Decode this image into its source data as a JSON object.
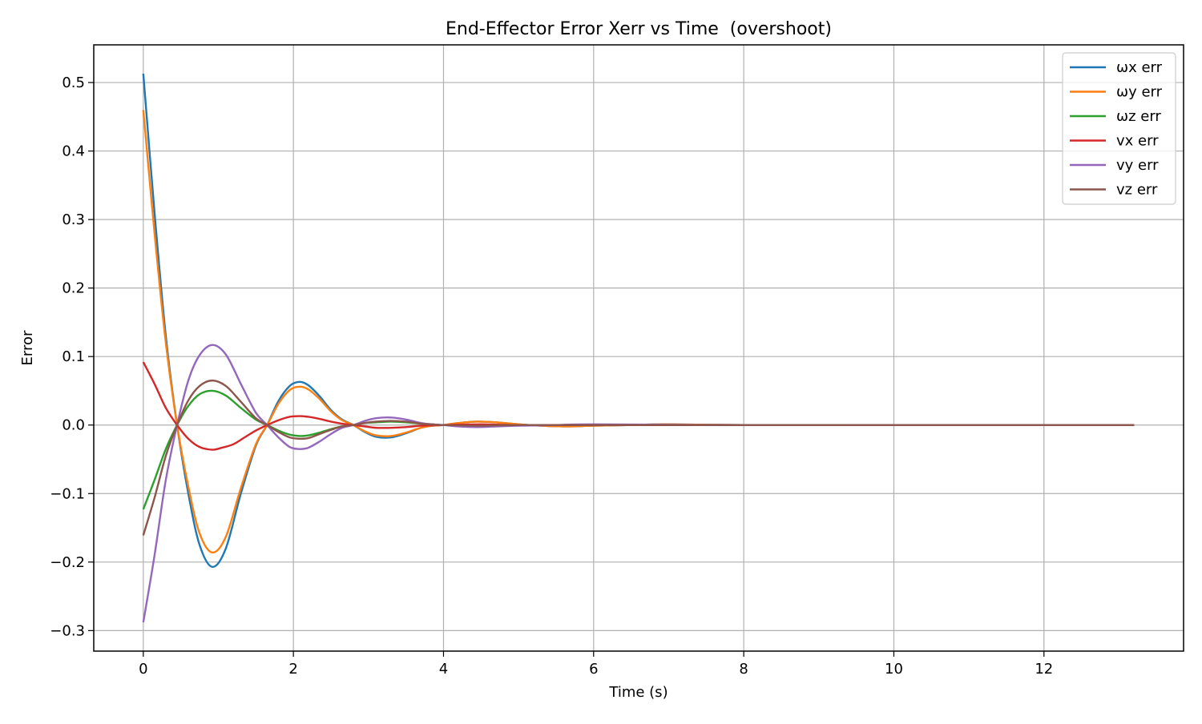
{
  "chart_data": {
    "type": "line",
    "title": "End-Effector Error Xerr vs Time  (overshoot)",
    "xlabel": "Time (s)",
    "ylabel": "Error",
    "xlim": [
      -0.66,
      13.86
    ],
    "ylim": [
      -0.33,
      0.555
    ],
    "xticks": [
      0,
      2,
      4,
      6,
      8,
      10,
      12
    ],
    "xtick_labels": [
      "0",
      "2",
      "4",
      "6",
      "8",
      "10",
      "12"
    ],
    "yticks": [
      -0.3,
      -0.2,
      -0.1,
      0.0,
      0.1,
      0.2,
      0.3,
      0.4,
      0.5
    ],
    "ytick_labels": [
      "−0.3",
      "−0.2",
      "−0.1",
      "0.0",
      "0.1",
      "0.2",
      "0.3",
      "0.4",
      "0.5"
    ],
    "grid": true,
    "legend_position": "top-right",
    "series": [
      {
        "name": "ωx err",
        "color": "#1f77b4",
        "x": [
          0,
          0.15,
          0.3,
          0.45,
          0.6,
          0.75,
          0.92,
          1.1,
          1.3,
          1.5,
          1.65,
          1.8,
          1.95,
          2.08,
          2.2,
          2.35,
          2.5,
          2.65,
          2.8,
          2.95,
          3.1,
          3.3,
          3.5,
          3.7,
          3.85,
          4.0,
          4.2,
          4.45,
          4.7,
          5.0,
          5.3,
          5.6,
          6.0,
          6.5,
          7.0,
          8.0,
          9.0,
          10.0,
          11.0,
          12.0,
          13.2
        ],
        "y": [
          0.513,
          0.31,
          0.13,
          0.0,
          -0.1,
          -0.175,
          -0.207,
          -0.18,
          -0.1,
          -0.03,
          0.0,
          0.035,
          0.057,
          0.063,
          0.058,
          0.042,
          0.022,
          0.008,
          0.0,
          -0.01,
          -0.017,
          -0.018,
          -0.012,
          -0.004,
          -0.001,
          0.0,
          0.003,
          0.005,
          0.004,
          0.001,
          -0.001,
          -0.002,
          -0.001,
          0.0,
          0.001,
          0.0,
          0.0,
          0.0,
          0.0,
          0.0,
          0.0
        ]
      },
      {
        "name": "ωy err",
        "color": "#ff7f0e",
        "x": [
          0,
          0.15,
          0.3,
          0.45,
          0.6,
          0.75,
          0.92,
          1.1,
          1.3,
          1.5,
          1.65,
          1.8,
          1.95,
          2.08,
          2.2,
          2.35,
          2.5,
          2.65,
          2.8,
          2.95,
          3.1,
          3.3,
          3.5,
          3.7,
          3.85,
          4.0,
          4.2,
          4.45,
          4.7,
          5.0,
          5.3,
          5.6,
          6.0,
          6.5,
          7.0,
          8.0,
          9.0,
          10.0,
          11.0,
          12.0,
          13.2
        ],
        "y": [
          0.46,
          0.28,
          0.12,
          0.0,
          -0.09,
          -0.158,
          -0.186,
          -0.163,
          -0.092,
          -0.028,
          0.0,
          0.031,
          0.051,
          0.056,
          0.052,
          0.038,
          0.02,
          0.007,
          0.0,
          -0.009,
          -0.015,
          -0.016,
          -0.011,
          -0.004,
          -0.001,
          0.0,
          0.003,
          0.005,
          0.004,
          0.001,
          -0.001,
          -0.002,
          -0.001,
          0.0,
          0.001,
          0.0,
          0.0,
          0.0,
          0.0,
          0.0,
          0.0
        ]
      },
      {
        "name": "ωz err",
        "color": "#2ca02c",
        "x": [
          0,
          0.15,
          0.3,
          0.45,
          0.6,
          0.75,
          0.92,
          1.1,
          1.3,
          1.5,
          1.65,
          1.8,
          1.95,
          2.08,
          2.2,
          2.35,
          2.5,
          2.65,
          2.8,
          2.95,
          3.1,
          3.3,
          3.5,
          3.7,
          3.85,
          4.0,
          4.5,
          5.0,
          6.0,
          8.0,
          10.0,
          13.2
        ],
        "y": [
          -0.123,
          -0.08,
          -0.035,
          0.0,
          0.028,
          0.045,
          0.05,
          0.043,
          0.025,
          0.008,
          0.0,
          -0.008,
          -0.014,
          -0.016,
          -0.015,
          -0.011,
          -0.006,
          -0.002,
          0.0,
          0.003,
          0.004,
          0.005,
          0.004,
          0.002,
          0.001,
          0.0,
          -0.001,
          0.0,
          0.0,
          0.0,
          0.0,
          0.0
        ]
      },
      {
        "name": "vx err",
        "color": "#d62728",
        "x": [
          0,
          0.15,
          0.3,
          0.45,
          0.6,
          0.75,
          0.92,
          1.05,
          1.2,
          1.35,
          1.5,
          1.65,
          1.8,
          1.95,
          2.08,
          2.2,
          2.35,
          2.5,
          2.65,
          2.8,
          2.95,
          3.1,
          3.3,
          3.5,
          3.7,
          4.0,
          4.5,
          5.0,
          6.0,
          8.0,
          10.0,
          13.2
        ],
        "y": [
          0.092,
          0.06,
          0.025,
          0.0,
          -0.02,
          -0.032,
          -0.036,
          -0.033,
          -0.028,
          -0.018,
          -0.008,
          0.0,
          0.007,
          0.012,
          0.013,
          0.012,
          0.009,
          0.005,
          0.002,
          0.0,
          -0.002,
          -0.004,
          -0.004,
          -0.003,
          -0.001,
          0.0,
          0.001,
          0.0,
          0.0,
          0.0,
          0.0,
          0.0
        ]
      },
      {
        "name": "vy err",
        "color": "#9467bd",
        "x": [
          0,
          0.15,
          0.3,
          0.45,
          0.6,
          0.75,
          0.92,
          1.1,
          1.3,
          1.5,
          1.65,
          1.8,
          1.95,
          2.08,
          2.2,
          2.35,
          2.5,
          2.65,
          2.8,
          2.95,
          3.1,
          3.3,
          3.5,
          3.7,
          3.85,
          4.0,
          4.2,
          4.45,
          4.7,
          5.0,
          5.5,
          6.0,
          8.0,
          10.0,
          13.2
        ],
        "y": [
          -0.288,
          -0.19,
          -0.08,
          0.0,
          0.065,
          0.102,
          0.117,
          0.103,
          0.06,
          0.018,
          0.0,
          -0.018,
          -0.032,
          -0.035,
          -0.033,
          -0.024,
          -0.013,
          -0.004,
          0.0,
          0.006,
          0.01,
          0.011,
          0.008,
          0.003,
          0.001,
          0.0,
          -0.002,
          -0.003,
          -0.002,
          -0.001,
          0.0,
          0.001,
          0.0,
          0.0,
          0.0
        ]
      },
      {
        "name": "vz err",
        "color": "#8c564b",
        "x": [
          0,
          0.15,
          0.3,
          0.45,
          0.6,
          0.75,
          0.92,
          1.1,
          1.3,
          1.5,
          1.65,
          1.8,
          1.95,
          2.08,
          2.2,
          2.35,
          2.5,
          2.65,
          2.8,
          2.95,
          3.1,
          3.3,
          3.5,
          3.7,
          3.85,
          4.0,
          4.5,
          5.0,
          6.0,
          8.0,
          10.0,
          13.2
        ],
        "y": [
          -0.161,
          -0.106,
          -0.045,
          0.0,
          0.036,
          0.057,
          0.065,
          0.057,
          0.034,
          0.01,
          0.0,
          -0.01,
          -0.018,
          -0.02,
          -0.019,
          -0.013,
          -0.007,
          -0.002,
          0.0,
          0.003,
          0.005,
          0.006,
          0.005,
          0.002,
          0.001,
          0.0,
          -0.001,
          0.0,
          0.0,
          0.0,
          0.0,
          0.0
        ]
      }
    ]
  }
}
